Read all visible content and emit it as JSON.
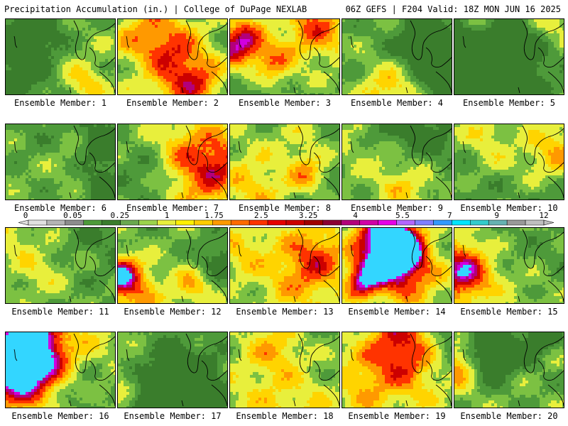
{
  "header": {
    "title_left": "Precipitation Accumulation (in.) | College of DuPage NEXLAB",
    "title_right": "06Z GEFS | F204 Valid: 18Z MON JUN 16 2025"
  },
  "colorbar": {
    "labels": [
      "0",
      "0.05",
      "0.25",
      "1",
      "1.75",
      "2.5",
      "3.25",
      "4",
      "5.5",
      "7",
      "9",
      "12"
    ],
    "colors": [
      "#e0e0e0",
      "#b4b4b4",
      "#8c8c8c",
      "#4e9a3a",
      "#3a7d2c",
      "#6aa84f",
      "#9bd34b",
      "#e8ef3c",
      "#fff000",
      "#ffcc00",
      "#ff9900",
      "#ff6a00",
      "#ff3300",
      "#e60000",
      "#cc0000",
      "#a00000",
      "#8b0033",
      "#b3007a",
      "#d100a6",
      "#e600e6",
      "#b366ff",
      "#7f7fff",
      "#3399ff",
      "#00e5ff",
      "#33cccc",
      "#66b2b2",
      "#999999",
      "#bfbfbf"
    ]
  },
  "members": [
    {
      "label": "Ensemble Member: 1",
      "seed": 11,
      "wet": 0.55
    },
    {
      "label": "Ensemble Member: 2",
      "seed": 23,
      "wet": 0.7
    },
    {
      "label": "Ensemble Member: 3",
      "seed": 37,
      "wet": 0.8
    },
    {
      "label": "Ensemble Member: 4",
      "seed": 41,
      "wet": 0.6
    },
    {
      "label": "Ensemble Member: 5",
      "seed": 53,
      "wet": 0.65
    },
    {
      "label": "Ensemble Member: 6",
      "seed": 67,
      "wet": 0.4
    },
    {
      "label": "Ensemble Member: 7",
      "seed": 71,
      "wet": 0.75
    },
    {
      "label": "Ensemble Member: 8",
      "seed": 83,
      "wet": 0.65
    },
    {
      "label": "Ensemble Member: 9",
      "seed": 97,
      "wet": 0.62
    },
    {
      "label": "Ensemble Member: 10",
      "seed": 101,
      "wet": 0.6
    },
    {
      "label": "Ensemble Member: 11",
      "seed": 113,
      "wet": 0.3
    },
    {
      "label": "Ensemble Member: 12",
      "seed": 127,
      "wet": 0.62
    },
    {
      "label": "Ensemble Member: 13",
      "seed": 131,
      "wet": 0.42
    },
    {
      "label": "Ensemble Member: 14",
      "seed": 149,
      "wet": 0.72
    },
    {
      "label": "Ensemble Member: 15",
      "seed": 151,
      "wet": 0.45
    },
    {
      "label": "Ensemble Member: 16",
      "seed": 163,
      "wet": 0.58
    },
    {
      "label": "Ensemble Member: 17",
      "seed": 173,
      "wet": 0.68
    },
    {
      "label": "Ensemble Member: 18",
      "seed": 181,
      "wet": 0.55
    },
    {
      "label": "Ensemble Member: 19",
      "seed": 191,
      "wet": 0.5
    },
    {
      "label": "Ensemble Member: 20",
      "seed": 199,
      "wet": 0.6
    }
  ]
}
